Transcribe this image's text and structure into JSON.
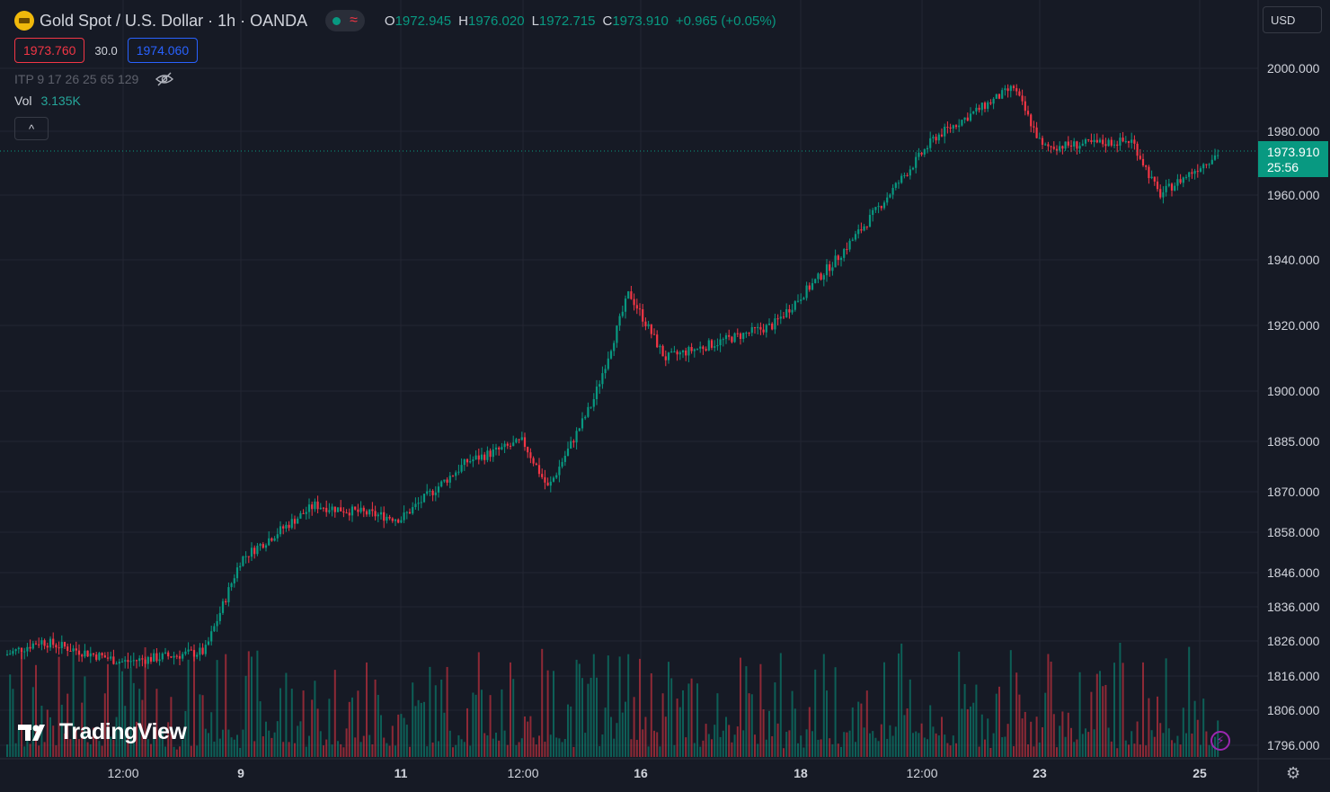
{
  "header": {
    "symbol_title": "Gold Spot / U.S. Dollar · 1h · OANDA",
    "ohlc": [
      {
        "key": "O",
        "value": "1972.945"
      },
      {
        "key": "H",
        "value": "1976.020"
      },
      {
        "key": "L",
        "value": "1972.715"
      },
      {
        "key": "C",
        "value": "1973.910"
      }
    ],
    "change": "+0.965 (+0.05%)",
    "sell_price": "1973.760",
    "spread": "30.0",
    "buy_price": "1974.060",
    "indicator": "ITP 9 17 26 25 65 129",
    "volume_label": "Vol",
    "volume_value": "3.135K",
    "collapse_glyph": "^"
  },
  "currency_selector": "USD",
  "price_axis": {
    "ticks": [
      "2000.000",
      "1980.000",
      "1960.000",
      "1940.000",
      "1920.000",
      "1900.000",
      "1885.000",
      "1870.000",
      "1858.000",
      "1846.000",
      "1836.000",
      "1826.000",
      "1816.000",
      "1806.000",
      "1796.000"
    ],
    "current_price": "1973.910",
    "countdown": "25:56"
  },
  "time_axis": {
    "labels": [
      "12:00",
      "9",
      "11",
      "12:00",
      "16",
      "18",
      "12:00",
      "23",
      "25"
    ]
  },
  "brand": "TradingView",
  "colors": {
    "up": "#089981",
    "down": "#f23645",
    "background": "#161a25",
    "grid": "#232632",
    "price_tag": "#089981"
  },
  "chart_data": {
    "type": "candlestick",
    "title": "Gold Spot / U.S. Dollar · 1h · OANDA",
    "price_scale": "custom-compressed",
    "series": [
      {
        "name": "price",
        "points": [
          {
            "x": "start",
            "y": 1822
          },
          {
            "x": "day 7",
            "y": 1826
          },
          {
            "x": "12:00",
            "y": 1820
          },
          {
            "x": "day 8 late",
            "y": 1823
          },
          {
            "x": "9",
            "y": 1850
          },
          {
            "x": "10",
            "y": 1866
          },
          {
            "x": "11",
            "y": 1862
          },
          {
            "x": "12",
            "y": 1879
          },
          {
            "x": "12:00",
            "y": 1885
          },
          {
            "x": "13",
            "y": 1871
          },
          {
            "x": "14 late",
            "y": 1897
          },
          {
            "x": "15",
            "y": 1930
          },
          {
            "x": "16",
            "y": 1910
          },
          {
            "x": "17",
            "y": 1920
          },
          {
            "x": "18",
            "y": 1940
          },
          {
            "x": "19",
            "y": 1950
          },
          {
            "x": "20",
            "y": 1978
          },
          {
            "x": "22",
            "y": 1994
          },
          {
            "x": "23",
            "y": 1975
          },
          {
            "x": "24",
            "y": 1977
          },
          {
            "x": "24 late",
            "y": 1960
          },
          {
            "x": "25",
            "y": 1974
          }
        ]
      }
    ],
    "current_price": 1973.91,
    "volume_last": "3.135K"
  }
}
